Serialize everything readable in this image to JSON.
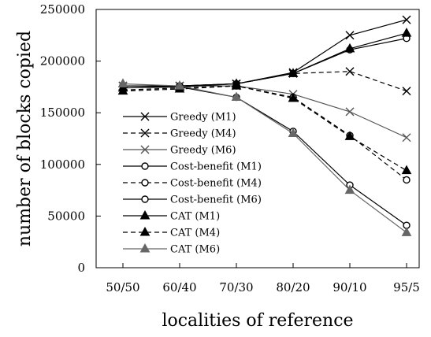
{
  "chart_data": {
    "type": "line",
    "xlabel": "localities of reference",
    "ylabel": "number of blocks copied",
    "categories": [
      "50/50",
      "60/40",
      "70/30",
      "80/20",
      "90/10",
      "95/5"
    ],
    "ylim": [
      0,
      250000
    ],
    "yticks": [
      0,
      50000,
      100000,
      150000,
      200000,
      250000
    ],
    "grid": false,
    "legend_position": "inside-left",
    "series": [
      {
        "name": "Greedy (M1)",
        "marker": "x",
        "dash": "solid",
        "color": "#000000",
        "values": [
          176000,
          176000,
          178000,
          189000,
          225000,
          240000
        ]
      },
      {
        "name": "Greedy (M4)",
        "marker": "x",
        "dash": "dashed",
        "color": "#000000",
        "values": [
          176000,
          176000,
          178000,
          188000,
          190000,
          171000
        ]
      },
      {
        "name": "Greedy (M6)",
        "marker": "x",
        "dash": "solid",
        "color": "#555555",
        "values": [
          176000,
          176000,
          176000,
          168000,
          151000,
          126000
        ]
      },
      {
        "name": "Cost-benefit (M1)",
        "marker": "circle",
        "dash": "solid",
        "color": "#000000",
        "values": [
          176000,
          176000,
          178000,
          188000,
          211000,
          222000
        ]
      },
      {
        "name": "Cost-benefit (M4)",
        "marker": "circle",
        "dash": "dashed",
        "color": "#000000",
        "values": [
          172000,
          174000,
          176000,
          165000,
          128000,
          85000
        ]
      },
      {
        "name": "Cost-benefit (M6)",
        "marker": "circle",
        "dash": "solid",
        "color": "#000000",
        "values": [
          176000,
          175000,
          165000,
          132000,
          80000,
          41000
        ]
      },
      {
        "name": "CAT (M1)",
        "marker": "triangle-filled",
        "dash": "solid",
        "color": "#000000",
        "values": [
          174000,
          175000,
          178000,
          188000,
          212000,
          227000
        ]
      },
      {
        "name": "CAT (M4)",
        "marker": "triangle-filled",
        "dash": "dashed",
        "color": "#000000",
        "values": [
          171000,
          173000,
          176000,
          164000,
          127000,
          94000
        ]
      },
      {
        "name": "CAT (M6)",
        "marker": "triangle-filled",
        "dash": "solid",
        "color": "#666666",
        "values": [
          178000,
          176000,
          165000,
          130000,
          75000,
          34000
        ]
      }
    ]
  }
}
